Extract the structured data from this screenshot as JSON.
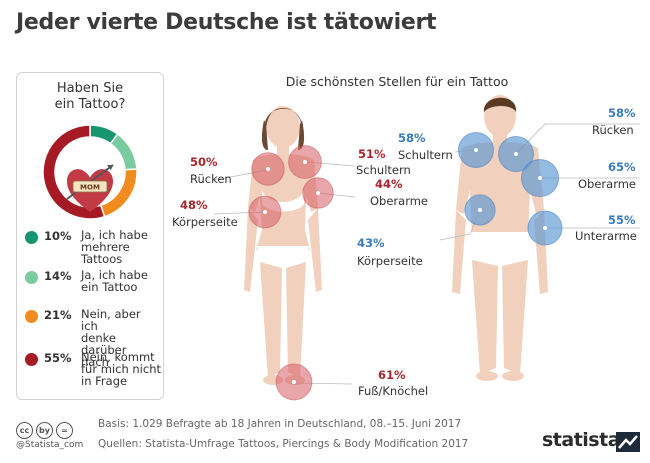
{
  "title": "Jeder vierte Deutsche ist tätowiert",
  "panel": {
    "question": "Haben Sie\nein Tattoo?",
    "heart_text": "MOM"
  },
  "colors": {
    "red": "#a8262e",
    "blue": "#3a7bb9",
    "dark_green": "#17956f",
    "light_green": "#7bcba0",
    "orange": "#f28c1e",
    "dark_red": "#a61a26"
  },
  "chart_data": [
    {
      "type": "pie",
      "title": "Haben Sie ein Tattoo?",
      "categories": [
        "Ja, ich habe mehrere Tattoos",
        "Ja, ich habe ein Tattoo",
        "Nein, aber ich denke darüber nach",
        "Nein, kommt für mich nicht in Frage"
      ],
      "values": [
        10,
        14,
        21,
        55
      ],
      "slices": [
        {
          "pct_label": "10%",
          "label": "Ja, ich habe\nmehrere\nTattoos",
          "value": 10,
          "color": "#17956f"
        },
        {
          "pct_label": "14%",
          "label": "Ja, ich habe\nein Tattoo",
          "value": 14,
          "color": "#7bcba0"
        },
        {
          "pct_label": "21%",
          "label": "Nein, aber ich\ndenke darüber\nnach",
          "value": 21,
          "color": "#f28c1e"
        },
        {
          "pct_label": "55%",
          "label": "Nein, kommt\nfür mich nicht\nin Frage",
          "value": 55,
          "color": "#a61a26"
        }
      ]
    },
    {
      "type": "bubble",
      "title": "Die schönsten Stellen für ein Tattoo",
      "series": [
        {
          "name": "Frauen",
          "points": [
            {
              "label": "Rücken",
              "value": 50,
              "pct_label": "50%"
            },
            {
              "label": "Schultern",
              "value": 51,
              "pct_label": "51%"
            },
            {
              "label": "Oberarme",
              "value": 44,
              "pct_label": "44%"
            },
            {
              "label": "Körperseite",
              "value": 48,
              "pct_label": "48%"
            },
            {
              "label": "Fuß/Knöchel",
              "value": 61,
              "pct_label": "61%"
            }
          ]
        },
        {
          "name": "Männer",
          "points": [
            {
              "label": "Schultern",
              "value": 58,
              "pct_label": "58%"
            },
            {
              "label": "Rücken",
              "value": 58,
              "pct_label": "58%"
            },
            {
              "label": "Oberarme",
              "value": 65,
              "pct_label": "65%"
            },
            {
              "label": "Körperseite",
              "value": 43,
              "pct_label": "43%"
            },
            {
              "label": "Unterarme",
              "value": 55,
              "pct_label": "55%"
            }
          ]
        }
      ]
    }
  ],
  "footer": {
    "cc_icons": [
      "cc",
      "by",
      "="
    ],
    "handle": "@Statista_com",
    "basis": "Basis: 1.029 Befragte ab 18 Jahren in Deutschland, 08.–15. Juni 2017",
    "source": "Quellen: Statista-Umfrage Tattoos, Piercings & Body Modification 2017",
    "brand": "statista"
  }
}
